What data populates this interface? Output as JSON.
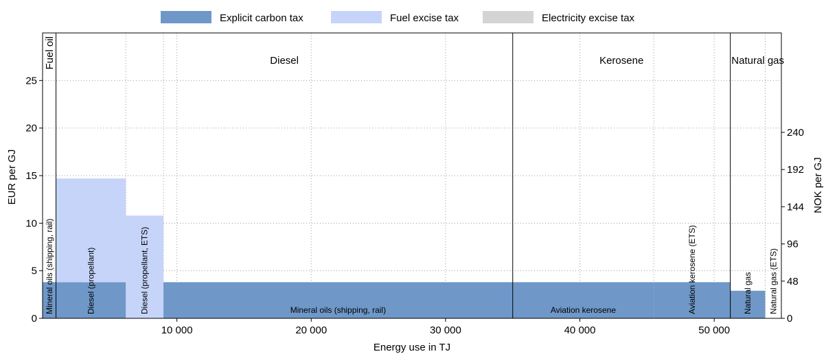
{
  "chart_data": {
    "type": "bar",
    "xlabel": "Energy use in TJ",
    "ylabel": "EUR per GJ",
    "ylabel_right": "NOK per GJ",
    "xlim": [
      0,
      55000
    ],
    "ylim": [
      0,
      30
    ],
    "xticks": [
      10000,
      20000,
      30000,
      40000,
      50000
    ],
    "xtick_labels": [
      "10 000",
      "20 000",
      "30 000",
      "40 000",
      "50 000"
    ],
    "yticks": [
      0,
      5,
      10,
      15,
      20,
      25
    ],
    "yticks_right": [
      0,
      48,
      96,
      144,
      192,
      240
    ],
    "yticks_right_values": [
      0,
      3.91,
      7.82,
      11.73,
      15.64,
      19.55
    ],
    "legend": [
      {
        "name": "Explicit carbon tax",
        "color": "#6f98c8"
      },
      {
        "name": "Fuel excise tax",
        "color": "#c6d4fa"
      },
      {
        "name": "Electricity excise tax",
        "color": "#d4d4d4"
      }
    ],
    "legend_position": "top",
    "grid": true,
    "colors": {
      "carbon": "#6f98c8",
      "fuel": "#c6d4fa",
      "electricity": "#d4d4d4"
    },
    "fuel_groups": [
      {
        "name": "Fuel oil",
        "x_start": 0,
        "x_end": 1000,
        "vertical": true
      },
      {
        "name": "Diesel",
        "x_start": 1000,
        "x_end": 35000,
        "vertical": false
      },
      {
        "name": "Kerosene",
        "x_start": 35000,
        "x_end": 51200,
        "vertical": false
      },
      {
        "name": "Natural gas",
        "x_start": 51200,
        "x_end": 55000,
        "vertical": false
      }
    ],
    "segments": [
      {
        "label": "Mineral oils (shipping, rail)",
        "x_start": 0,
        "x_end": 1000,
        "carbon": 3.8,
        "fuel": 0,
        "electricity": 0,
        "label_vertical": true
      },
      {
        "label": "Diesel (propellant)",
        "x_start": 1000,
        "x_end": 6200,
        "carbon": 3.8,
        "fuel": 10.9,
        "electricity": 0,
        "label_vertical": true
      },
      {
        "label": "Diesel (propellant, ETS)",
        "x_start": 6200,
        "x_end": 9000,
        "carbon": 0,
        "fuel": 10.8,
        "electricity": 0,
        "label_vertical": true
      },
      {
        "label": "Mineral oils (shipping, rail)",
        "x_start": 9000,
        "x_end": 35000,
        "carbon": 3.8,
        "fuel": 0,
        "electricity": 0,
        "label_vertical": false
      },
      {
        "label": "Aviation kerosene",
        "x_start": 35000,
        "x_end": 45500,
        "carbon": 3.8,
        "fuel": 0,
        "electricity": 0,
        "label_vertical": false
      },
      {
        "label": "Aviation kerosene (ETS)",
        "x_start": 45500,
        "x_end": 51200,
        "carbon": 3.8,
        "fuel": 0,
        "electricity": 0,
        "label_vertical": true
      },
      {
        "label": "Natural gas",
        "x_start": 51200,
        "x_end": 53800,
        "carbon": 2.9,
        "fuel": 0,
        "electricity": 0,
        "label_vertical": true
      },
      {
        "label": "Natural gas (ETS)",
        "x_start": 53800,
        "x_end": 55000,
        "carbon": 0,
        "fuel": 0,
        "electricity": 0,
        "label_vertical": true
      }
    ]
  }
}
